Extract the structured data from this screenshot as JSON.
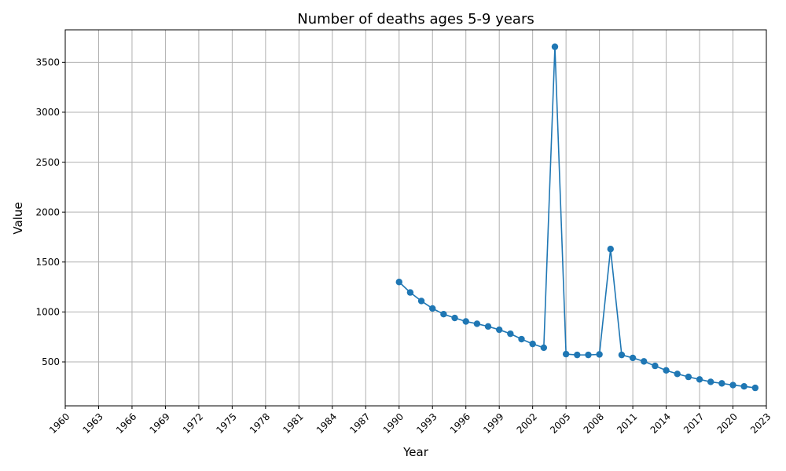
{
  "chart_data": {
    "type": "line",
    "title": "Number of deaths ages 5-9 years",
    "xlabel": "Year",
    "ylabel": "Value",
    "xlim": [
      1960,
      2023
    ],
    "ylim": [
      60,
      3825
    ],
    "x_ticks": [
      "1960",
      "1963",
      "1966",
      "1969",
      "1972",
      "1975",
      "1978",
      "1981",
      "1984",
      "1987",
      "1990",
      "1993",
      "1996",
      "1999",
      "2002",
      "2005",
      "2008",
      "2011",
      "2014",
      "2017",
      "2020",
      "2023"
    ],
    "y_ticks": [
      "500",
      "1000",
      "1500",
      "2000",
      "2500",
      "3000",
      "3500"
    ],
    "grid": true,
    "color": "#1f77b4",
    "marker": "circle",
    "series": [
      {
        "x": [
          1990,
          1991,
          1992,
          1993,
          1994,
          1995,
          1996,
          1997,
          1998,
          1999,
          2000,
          2001,
          2002,
          2003,
          2004,
          2005,
          2006,
          2007,
          2008,
          2009,
          2010,
          2011,
          2012,
          2013,
          2014,
          2015,
          2016,
          2017,
          2018,
          2019,
          2020,
          2021,
          2022
        ],
        "values": [
          1300,
          1195,
          1110,
          1035,
          978,
          940,
          905,
          882,
          855,
          822,
          782,
          728,
          680,
          642,
          3655,
          578,
          570,
          570,
          575,
          1630,
          570,
          540,
          505,
          460,
          415,
          380,
          350,
          325,
          300,
          285,
          268,
          255,
          240
        ]
      }
    ]
  }
}
